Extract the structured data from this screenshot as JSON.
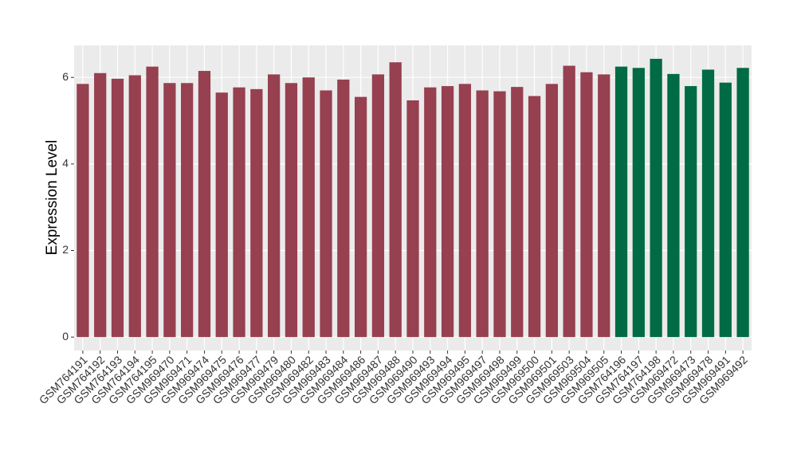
{
  "chart_data": {
    "type": "bar",
    "y_label": "Expression Level",
    "categories": [
      "GSM764191",
      "GSM764192",
      "GSM764193",
      "GSM764194",
      "GSM764195",
      "GSM969470",
      "GSM969471",
      "GSM969474",
      "GSM969475",
      "GSM969476",
      "GSM969477",
      "GSM969479",
      "GSM969480",
      "GSM969482",
      "GSM969483",
      "GSM969484",
      "GSM969486",
      "GSM969487",
      "GSM969488",
      "GSM969490",
      "GSM969493",
      "GSM969494",
      "GSM969495",
      "GSM969497",
      "GSM969498",
      "GSM969499",
      "GSM969500",
      "GSM969501",
      "GSM969503",
      "GSM969504",
      "GSM969505",
      "GSM764196",
      "GSM764197",
      "GSM764198",
      "GSM969472",
      "GSM969473",
      "GSM969478",
      "GSM969491",
      "GSM969492"
    ],
    "values": [
      5.85,
      6.1,
      5.97,
      6.05,
      6.25,
      5.87,
      5.87,
      6.15,
      5.65,
      5.77,
      5.73,
      6.07,
      5.87,
      6.0,
      5.7,
      5.95,
      5.55,
      6.07,
      6.35,
      5.47,
      5.77,
      5.8,
      5.85,
      5.7,
      5.68,
      5.78,
      5.57,
      5.85,
      6.27,
      6.12,
      6.07,
      6.25,
      6.22,
      6.43,
      6.08,
      5.8,
      6.18,
      5.88,
      6.22
    ],
    "colors": [
      "#964050",
      "#964050",
      "#964050",
      "#964050",
      "#964050",
      "#964050",
      "#964050",
      "#964050",
      "#964050",
      "#964050",
      "#964050",
      "#964050",
      "#964050",
      "#964050",
      "#964050",
      "#964050",
      "#964050",
      "#964050",
      "#964050",
      "#964050",
      "#964050",
      "#964050",
      "#964050",
      "#964050",
      "#964050",
      "#964050",
      "#964050",
      "#964050",
      "#964050",
      "#964050",
      "#964050",
      "#006b45",
      "#006b45",
      "#006b45",
      "#006b45",
      "#006b45",
      "#006b45",
      "#006b45",
      "#006b45"
    ],
    "ylim": [
      -0.31,
      6.74
    ],
    "yticks": [
      0,
      2,
      4,
      6
    ],
    "grid": true
  }
}
